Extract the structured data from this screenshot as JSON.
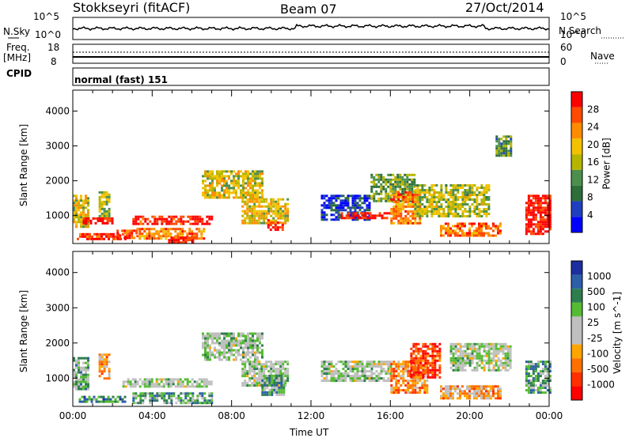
{
  "header": {
    "station": "Stokkseyri (fitACF)",
    "beam": "Beam 07",
    "date": "27/Oct/2014"
  },
  "top_panels": {
    "nsky_label": "N.Sky",
    "nsearch_label": "N.Search",
    "nsky_ticks": [
      "10^5",
      "10^0"
    ],
    "nsearch_ticks": [
      "10^5",
      "10^0"
    ],
    "freq_label": "Freq.",
    "freq_unit": "[MHz]",
    "freq_ticks": [
      "18",
      "8"
    ],
    "nave_label": "Nave",
    "nave_ticks": [
      "60",
      "0"
    ],
    "cpid_label": "CPID",
    "cpid_value": "normal (fast) 151"
  },
  "colors": {
    "power_scale": [
      "#0000ff",
      "#1f3fbf",
      "#2e6e3a",
      "#4c8f4c",
      "#b5b500",
      "#f2c200",
      "#ff8c00",
      "#ff4a00",
      "#ff0000"
    ],
    "velocity_scale": [
      "#1b2f9e",
      "#2c5fa8",
      "#2e7d4f",
      "#55bb33",
      "#bfbfbf",
      "#bfbfbf",
      "#ffa500",
      "#ff7000",
      "#ff3000",
      "#ff0000"
    ]
  },
  "chart_data": [
    {
      "type": "heatmap",
      "name": "power",
      "ylabel": "Slant Range [km]",
      "yticks": [
        "1000",
        "2000",
        "3000",
        "4000"
      ],
      "ylim": [
        200,
        4600
      ],
      "xlim": [
        0,
        24
      ],
      "colorbar_label": "Power [dB]",
      "colorbar_ticks": [
        "4",
        "8",
        "12",
        "16",
        "20",
        "24",
        "28"
      ],
      "patches": [
        {
          "t0": 0.0,
          "t1": 0.8,
          "r0": 700,
          "r1": 1600,
          "level": 0.55
        },
        {
          "t0": 0.2,
          "t1": 2.6,
          "r0": 300,
          "r1": 500,
          "level": 0.9
        },
        {
          "t0": 0.5,
          "t1": 2.0,
          "r0": 750,
          "r1": 950,
          "level": 0.95
        },
        {
          "t0": 1.3,
          "t1": 1.8,
          "r0": 1000,
          "r1": 1700,
          "level": 0.5
        },
        {
          "t0": 2.2,
          "t1": 3.2,
          "r0": 350,
          "r1": 600,
          "level": 0.85
        },
        {
          "t0": 3.0,
          "t1": 7.0,
          "r0": 750,
          "r1": 1000,
          "level": 0.9
        },
        {
          "t0": 3.2,
          "t1": 6.6,
          "r0": 350,
          "r1": 650,
          "level": 0.75
        },
        {
          "t0": 4.8,
          "t1": 6.2,
          "r0": 250,
          "r1": 400,
          "level": 0.95
        },
        {
          "t0": 6.5,
          "t1": 9.5,
          "r0": 1500,
          "r1": 2300,
          "level": 0.55
        },
        {
          "t0": 8.5,
          "t1": 10.8,
          "r0": 800,
          "r1": 1500,
          "level": 0.6
        },
        {
          "t0": 9.8,
          "t1": 10.6,
          "r0": 600,
          "r1": 900,
          "level": 0.9
        },
        {
          "t0": 12.5,
          "t1": 15.0,
          "r0": 900,
          "r1": 1600,
          "level": 0.15
        },
        {
          "t0": 13.5,
          "t1": 16.0,
          "r0": 900,
          "r1": 1100,
          "level": 0.95
        },
        {
          "t0": 15.0,
          "t1": 17.2,
          "r0": 1400,
          "r1": 2200,
          "level": 0.4
        },
        {
          "t0": 16.0,
          "t1": 17.5,
          "r0": 800,
          "r1": 1700,
          "level": 0.75
        },
        {
          "t0": 17.2,
          "t1": 21.0,
          "r0": 1000,
          "r1": 1900,
          "level": 0.5
        },
        {
          "t0": 18.5,
          "t1": 21.5,
          "r0": 450,
          "r1": 800,
          "level": 0.8
        },
        {
          "t0": 21.3,
          "t1": 22.1,
          "r0": 2700,
          "r1": 3300,
          "level": 0.35
        },
        {
          "t0": 22.8,
          "t1": 24.0,
          "r0": 500,
          "r1": 1600,
          "level": 0.95
        }
      ]
    },
    {
      "type": "heatmap",
      "name": "velocity",
      "ylabel": "Slant Range [km]",
      "yticks": [
        "1000",
        "2000",
        "3000",
        "4000"
      ],
      "ylim": [
        200,
        4600
      ],
      "xlim": [
        0,
        24
      ],
      "xticks": [
        "00:00",
        "04:00",
        "08:00",
        "12:00",
        "16:00",
        "20:00",
        "00:00"
      ],
      "xlabel": "Time UT",
      "colorbar_label": "Velocity [m s^-1]",
      "colorbar_ticks": [
        "1000",
        "500",
        "100",
        "25",
        "-25",
        "-100",
        "-500",
        "-1000"
      ],
      "patches": [
        {
          "t0": 0.0,
          "t1": 0.8,
          "r0": 700,
          "r1": 1600,
          "level": 0.35
        },
        {
          "t0": 0.3,
          "t1": 2.6,
          "r0": 300,
          "r1": 500,
          "level": 0.25
        },
        {
          "t0": 1.3,
          "t1": 1.8,
          "r0": 1000,
          "r1": 1700,
          "level": 0.65
        },
        {
          "t0": 2.5,
          "t1": 7.0,
          "r0": 750,
          "r1": 1000,
          "level": 0.45
        },
        {
          "t0": 3.0,
          "t1": 7.0,
          "r0": 300,
          "r1": 600,
          "level": 0.3
        },
        {
          "t0": 6.5,
          "t1": 9.5,
          "r0": 1500,
          "r1": 2300,
          "level": 0.45
        },
        {
          "t0": 8.5,
          "t1": 10.8,
          "r0": 800,
          "r1": 1500,
          "level": 0.45
        },
        {
          "t0": 9.5,
          "t1": 10.6,
          "r0": 500,
          "r1": 1100,
          "level": 0.3
        },
        {
          "t0": 12.5,
          "t1": 16.0,
          "r0": 900,
          "r1": 1500,
          "level": 0.45
        },
        {
          "t0": 16.0,
          "t1": 17.8,
          "r0": 600,
          "r1": 1500,
          "level": 0.7
        },
        {
          "t0": 17.0,
          "t1": 18.5,
          "r0": 1000,
          "r1": 2000,
          "level": 0.85
        },
        {
          "t0": 18.5,
          "t1": 21.5,
          "r0": 400,
          "r1": 800,
          "level": 0.65
        },
        {
          "t0": 19.0,
          "t1": 22.0,
          "r0": 1200,
          "r1": 2000,
          "level": 0.45
        },
        {
          "t0": 22.8,
          "t1": 24.0,
          "r0": 600,
          "r1": 1500,
          "level": 0.3
        }
      ]
    }
  ]
}
